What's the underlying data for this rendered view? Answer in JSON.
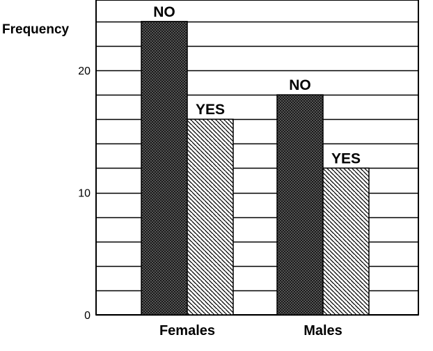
{
  "chart_data": {
    "type": "bar",
    "ylabel": "Frequency",
    "xlabel": "",
    "title": "",
    "categories": [
      "Females",
      "Males"
    ],
    "series": [
      {
        "name": "NO",
        "values": [
          24,
          18
        ],
        "label": "NO"
      },
      {
        "name": "YES",
        "values": [
          16,
          12
        ],
        "label": "YES"
      }
    ],
    "ylim": [
      0,
      24
    ],
    "yticks": [
      0,
      10,
      20
    ],
    "grid_step": 2,
    "grid": true,
    "colors": {
      "NO": "#4a4a4a",
      "YES": "#ffffff",
      "hatch": "#000000"
    }
  }
}
